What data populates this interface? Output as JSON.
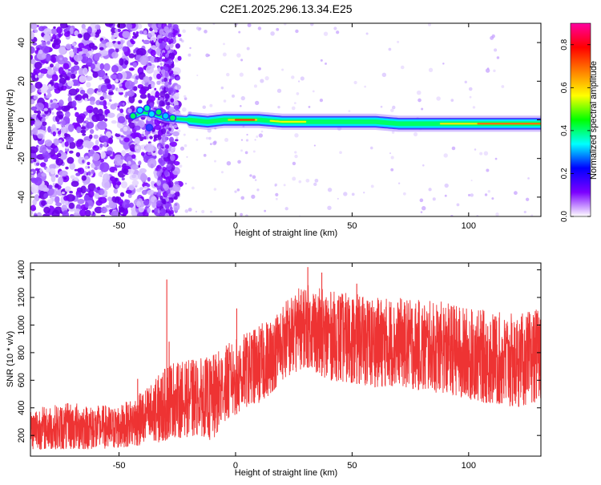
{
  "title": "C2E1.2025.296.13.34.E25",
  "chart_data": [
    {
      "type": "heatmap",
      "xlabel": "Height of straight line (km)",
      "ylabel": "Frequency (Hz)",
      "xlim": [
        -88,
        131
      ],
      "ylim": [
        -50,
        50
      ],
      "x_ticks": [
        -50,
        0,
        50,
        100
      ],
      "x_tick_labels": [
        "-50",
        "0",
        "50",
        "100"
      ],
      "y_ticks": [
        -40,
        -20,
        0,
        20,
        40
      ],
      "y_tick_labels": [
        "-40",
        "-20",
        "0",
        "20",
        "40"
      ],
      "grid": false,
      "description_of_values": {
        "noise_band_x_range": [
          -88,
          -28
        ],
        "ridge_points": [
          [
            -45,
            1
          ],
          [
            -40,
            4
          ],
          [
            -35,
            3
          ],
          [
            -30,
            1
          ],
          [
            -20,
            0
          ],
          [
            -12,
            -1
          ],
          [
            -5,
            0
          ],
          [
            0,
            0
          ],
          [
            10,
            0
          ],
          [
            20,
            -1
          ],
          [
            30,
            -1
          ],
          [
            40,
            -1
          ],
          [
            50,
            -1
          ],
          [
            60,
            -1
          ],
          [
            70,
            -2
          ],
          [
            80,
            -2
          ],
          [
            90,
            -2
          ],
          [
            100,
            -2
          ],
          [
            110,
            -2
          ],
          [
            120,
            -2
          ],
          [
            131,
            -2
          ]
        ]
      },
      "colorbar": {
        "label": "Normalized spectral amplitude",
        "range": [
          0,
          0.9
        ],
        "ticks": [
          0.0,
          0.2,
          0.4,
          0.6,
          0.8
        ],
        "tick_labels": [
          "0.0",
          "0.2",
          "0.4",
          "0.6",
          "0.8"
        ],
        "colormap": [
          "#ffffff",
          "#7b00ff",
          "#0000ff",
          "#00ffff",
          "#00ff00",
          "#ffff00",
          "#ff8000",
          "#ff0000",
          "#ff00a0"
        ]
      }
    },
    {
      "type": "line",
      "xlabel": "Height of straight line (km)",
      "ylabel": "SNR (10 * v/v)",
      "xlim": [
        -88,
        131
      ],
      "ylim": [
        50,
        1450
      ],
      "x_ticks": [
        -50,
        0,
        50,
        100
      ],
      "x_tick_labels": [
        "-50",
        "0",
        "50",
        "100"
      ],
      "y_ticks": [
        200,
        400,
        600,
        800,
        1000,
        1200,
        1400
      ],
      "y_tick_labels": [
        "200",
        "400",
        "600",
        "800",
        "1000",
        "1200",
        "1400"
      ],
      "grid": false,
      "series": [
        {
          "color": "#ee3333",
          "envelope": {
            "x": [
              -88,
              -70,
              -60,
              -50,
              -45,
              -40,
              -35,
              -30,
              -28,
              -25,
              -20,
              -15,
              -10,
              -5,
              0,
              5,
              10,
              15,
              20,
              25,
              30,
              40,
              50,
              60,
              70,
              80,
              90,
              100,
              110,
              120,
              131
            ],
            "low": [
              100,
              100,
              100,
              110,
              120,
              130,
              140,
              160,
              200,
              180,
              190,
              200,
              150,
              300,
              350,
              400,
              430,
              500,
              600,
              650,
              700,
              600,
              580,
              550,
              560,
              520,
              500,
              450,
              430,
              400,
              450
            ],
            "high": [
              400,
              440,
              420,
              420,
              460,
              520,
              600,
              700,
              750,
              730,
              750,
              760,
              780,
              850,
              900,
              950,
              1000,
              1050,
              1150,
              1250,
              1300,
              1250,
              1230,
              1200,
              1200,
              1180,
              1170,
              1130,
              1100,
              1080,
              1120
            ]
          },
          "spikes": [
            [
              -29.5,
              1330
            ],
            [
              -28.5,
              880
            ],
            [
              0.5,
              1120
            ],
            [
              31,
              1420
            ],
            [
              37,
              1380
            ],
            [
              -42,
              610
            ],
            [
              52,
              1300
            ]
          ]
        }
      ]
    }
  ]
}
